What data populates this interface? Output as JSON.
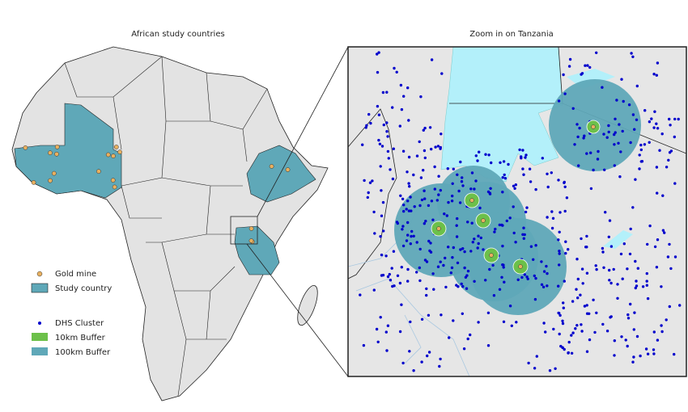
{
  "left_map": {
    "title": "African study countries"
  },
  "right_map": {
    "title": "Zoom in on Tanzania"
  },
  "legend": {
    "items": [
      "Gold mine",
      "Study country",
      "DHS Cluster",
      "10km Buffer",
      "100km Buffer"
    ]
  }
}
